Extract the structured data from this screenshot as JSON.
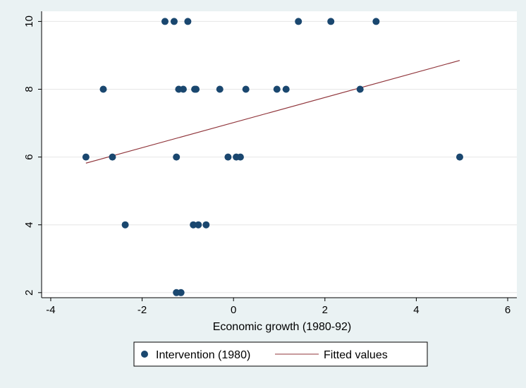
{
  "chart_data": {
    "type": "scatter",
    "xlabel": "Economic growth (1980-92)",
    "ylabel": "",
    "xlim": [
      -4.2,
      6.2
    ],
    "ylim": [
      1.85,
      10.3
    ],
    "xticks": [
      -4,
      -2,
      0,
      2,
      4,
      6
    ],
    "yticks": [
      2,
      4,
      6,
      8,
      10
    ],
    "grid": "horizontal-major",
    "legend_position": "bottom",
    "colors": {
      "points": "#1a476f",
      "fit": "#90353b",
      "plot_bg": "#ffffff",
      "page_bg": "#eaf2f3"
    },
    "series": [
      {
        "name": "Intervention (1980)",
        "kind": "scatter",
        "points": [
          [
            -1.5,
            10
          ],
          [
            -1.3,
            10
          ],
          [
            -1.0,
            10
          ],
          [
            1.42,
            10
          ],
          [
            2.13,
            10
          ],
          [
            3.12,
            10
          ],
          [
            -2.85,
            8
          ],
          [
            -1.2,
            8
          ],
          [
            -1.1,
            8
          ],
          [
            -0.85,
            8
          ],
          [
            -0.82,
            8
          ],
          [
            -0.3,
            8
          ],
          [
            0.27,
            8
          ],
          [
            0.95,
            8
          ],
          [
            1.15,
            8
          ],
          [
            2.77,
            8
          ],
          [
            -3.23,
            6
          ],
          [
            -2.65,
            6
          ],
          [
            -1.25,
            6
          ],
          [
            -0.12,
            6
          ],
          [
            0.06,
            6
          ],
          [
            0.15,
            6
          ],
          [
            4.95,
            6
          ],
          [
            -2.37,
            4
          ],
          [
            -0.88,
            4
          ],
          [
            -0.77,
            4
          ],
          [
            -0.6,
            4
          ],
          [
            -1.25,
            2
          ],
          [
            -1.15,
            2
          ]
        ]
      },
      {
        "name": "Fitted values",
        "kind": "line",
        "points": [
          [
            -3.23,
            5.82
          ],
          [
            4.95,
            8.85
          ]
        ]
      }
    ]
  }
}
